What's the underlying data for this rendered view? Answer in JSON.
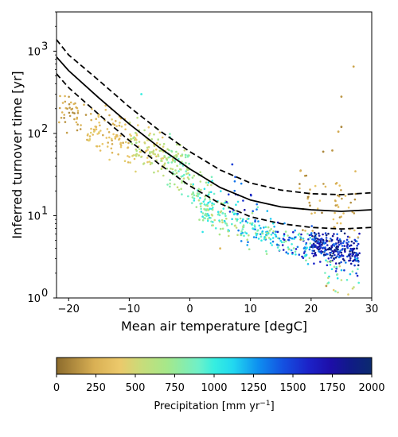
{
  "chart_data": {
    "type": "scatter",
    "xlabel": "Mean air temperature [degC]",
    "ylabel": "Inferred turnover time [yr]",
    "xlim": [
      -22,
      30
    ],
    "ylim": [
      1,
      3000
    ],
    "yscale": "log",
    "grid": false,
    "x_ticks": [
      -20,
      -10,
      0,
      10,
      20,
      30
    ],
    "y_ticks": [
      1,
      10,
      100,
      1000
    ],
    "y_tick_labels": [
      "10",
      "10",
      "10",
      "10"
    ],
    "y_tick_exponents": [
      "0",
      "1",
      "2",
      "3"
    ],
    "fit_curve": {
      "style": "solid black",
      "points": [
        [
          -22,
          850
        ],
        [
          -20,
          580
        ],
        [
          -15,
          270
        ],
        [
          -10,
          130
        ],
        [
          -5,
          67
        ],
        [
          0,
          37
        ],
        [
          5,
          22
        ],
        [
          10,
          15.5
        ],
        [
          15,
          12.8
        ],
        [
          20,
          11.8
        ],
        [
          25,
          11.3
        ],
        [
          30,
          11.8
        ]
      ]
    },
    "upper_bound": {
      "style": "dashed black",
      "points": [
        [
          -22,
          1380
        ],
        [
          -20,
          900
        ],
        [
          -15,
          440
        ],
        [
          -10,
          210
        ],
        [
          -5,
          108
        ],
        [
          0,
          60
        ],
        [
          5,
          36
        ],
        [
          10,
          25
        ],
        [
          15,
          20.5
        ],
        [
          20,
          18.5
        ],
        [
          25,
          18
        ],
        [
          30,
          19
        ]
      ]
    },
    "lower_bound": {
      "style": "dashed black",
      "points": [
        [
          -22,
          530
        ],
        [
          -20,
          360
        ],
        [
          -15,
          170
        ],
        [
          -10,
          82
        ],
        [
          -5,
          42
        ],
        [
          0,
          23
        ],
        [
          5,
          14
        ],
        [
          10,
          9.7
        ],
        [
          15,
          8
        ],
        [
          20,
          7.2
        ],
        [
          25,
          6.9
        ],
        [
          30,
          7.2
        ]
      ]
    },
    "point_clusters": [
      {
        "x_range": [
          -22,
          -17
        ],
        "y_center": 190,
        "y_spread": 0.12,
        "precip_range": [
          100,
          300
        ],
        "n": 40
      },
      {
        "x_range": [
          -17,
          -10
        ],
        "y_center": 100,
        "y_spread": 0.13,
        "precip_range": [
          200,
          450
        ],
        "n": 90
      },
      {
        "x_range": [
          -10,
          -4
        ],
        "y_center": 65,
        "y_spread": 0.13,
        "precip_range": [
          350,
          700
        ],
        "n": 110
      },
      {
        "x_range": [
          -4,
          0
        ],
        "y_center": 38,
        "y_spread": 0.14,
        "precip_range": [
          500,
          950
        ],
        "n": 90
      },
      {
        "x_range": [
          0,
          4
        ],
        "y_center": 17,
        "y_spread": 0.16,
        "precip_range": [
          550,
          1100
        ],
        "n": 70
      },
      {
        "x_range": [
          2,
          8
        ],
        "y_center": 10,
        "y_spread": 0.12,
        "precip_range": [
          500,
          1150
        ],
        "n": 90
      },
      {
        "x_range": [
          8,
          14
        ],
        "y_center": 6.3,
        "y_spread": 0.11,
        "precip_range": [
          600,
          1350
        ],
        "n": 90
      },
      {
        "x_range": [
          14,
          20
        ],
        "y_center": 4.7,
        "y_spread": 0.1,
        "precip_range": [
          700,
          1700
        ],
        "n": 90
      },
      {
        "x_range": [
          20,
          28
        ],
        "y_center": 4.0,
        "y_spread": 0.1,
        "precip_range": [
          1300,
          2000
        ],
        "n": 260
      },
      {
        "x_range": [
          22,
          28
        ],
        "y_center": 1.8,
        "y_spread": 0.12,
        "precip_range": [
          400,
          1200
        ],
        "n": 30
      },
      {
        "x_range": [
          18,
          28
        ],
        "y_center": 13,
        "y_spread": 0.2,
        "precip_range": [
          50,
          400
        ],
        "n": 60
      },
      {
        "x_range": [
          6,
          12
        ],
        "y_center": 12,
        "y_spread": 0.18,
        "precip_range": [
          1300,
          1800
        ],
        "n": 20
      }
    ],
    "outlier_points": [
      {
        "x": 27,
        "y": 650,
        "p": 200
      },
      {
        "x": 25,
        "y": 280,
        "p": 150
      },
      {
        "x": 25,
        "y": 120,
        "p": 100
      },
      {
        "x": 24.5,
        "y": 105,
        "p": 220
      },
      {
        "x": 23.5,
        "y": 62,
        "p": 150
      },
      {
        "x": 22,
        "y": 60,
        "p": 100
      },
      {
        "x": -8,
        "y": 300,
        "p": 1000
      },
      {
        "x": 5,
        "y": 4,
        "p": 300
      },
      {
        "x": 7,
        "y": 42,
        "p": 1500
      },
      {
        "x": 22.5,
        "y": 1.4,
        "p": 150
      }
    ],
    "colorbar": {
      "label_text": "Precipitation [mm yr",
      "label_exponent": "−1",
      "label_close": "]",
      "min": 0,
      "max": 2000,
      "ticks": [
        0,
        250,
        500,
        750,
        1000,
        1250,
        1500,
        1750,
        2000
      ],
      "colormap": [
        [
          0,
          "#8c6b2c"
        ],
        [
          0.12,
          "#d9b054"
        ],
        [
          0.2,
          "#ecc96b"
        ],
        [
          0.27,
          "#c8dc7a"
        ],
        [
          0.35,
          "#a6e88a"
        ],
        [
          0.45,
          "#6ff0c8"
        ],
        [
          0.5,
          "#36eee0"
        ],
        [
          0.56,
          "#22d8f0"
        ],
        [
          0.64,
          "#0e8ff0"
        ],
        [
          0.72,
          "#1450e0"
        ],
        [
          0.8,
          "#1c22c8"
        ],
        [
          0.87,
          "#1d0ea8"
        ],
        [
          0.93,
          "#101a88"
        ],
        [
          1,
          "#0b2a6e"
        ]
      ]
    }
  }
}
